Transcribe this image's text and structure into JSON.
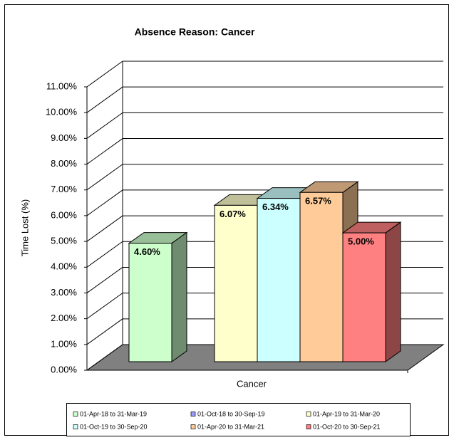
{
  "chart_data": {
    "type": "bar3d",
    "title": "Absence Reason: Cancer",
    "ylabel": "Time Lost (%)",
    "categories": [
      "Cancer"
    ],
    "ylim": [
      0,
      11
    ],
    "yticks": [
      {
        "value": 0,
        "label": "0.00%"
      },
      {
        "value": 1,
        "label": "1.00%"
      },
      {
        "value": 2,
        "label": "2.00%"
      },
      {
        "value": 3,
        "label": "3.00%"
      },
      {
        "value": 4,
        "label": "4.00%"
      },
      {
        "value": 5,
        "label": "5.00%"
      },
      {
        "value": 6,
        "label": "6.00%"
      },
      {
        "value": 7,
        "label": "7.00%"
      },
      {
        "value": 8,
        "label": "8.00%"
      },
      {
        "value": 9,
        "label": "9.00%"
      },
      {
        "value": 10,
        "label": "10.00%"
      },
      {
        "value": 11,
        "label": "11.00%"
      }
    ],
    "grid": true,
    "legend": "bottom",
    "series": [
      {
        "name": "01-Apr-18 to 31-Mar-19",
        "color": "#ccffcc",
        "values": [
          4.6
        ],
        "value_labels": [
          "4.60%"
        ]
      },
      {
        "name": "01-Oct-18 to 30-Sep-19",
        "color": "#9999ff",
        "values": [
          null
        ],
        "value_labels": [
          null
        ]
      },
      {
        "name": "01-Apr-19 to 31-Mar-20",
        "color": "#ffffcc",
        "values": [
          6.07
        ],
        "value_labels": [
          "6.07%"
        ]
      },
      {
        "name": "01-Oct-19 to 30-Sep-20",
        "color": "#ccffff",
        "values": [
          6.34
        ],
        "value_labels": [
          "6.34%"
        ]
      },
      {
        "name": "01-Apr-20 to 31-Mar-21",
        "color": "#ffcc99",
        "values": [
          6.57
        ],
        "value_labels": [
          "6.57%"
        ]
      },
      {
        "name": "01-Oct-20 to 30-Sep-21",
        "color": "#ff8080",
        "values": [
          5.0
        ],
        "value_labels": [
          "5.00%"
        ]
      }
    ]
  }
}
